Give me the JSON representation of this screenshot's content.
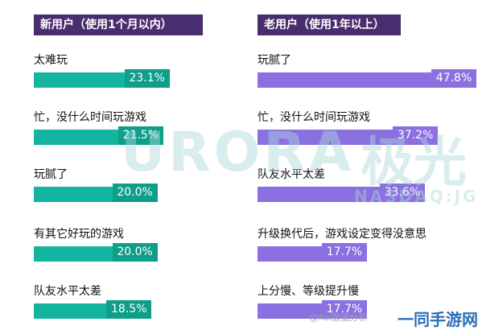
{
  "chart_data": [
    {
      "type": "bar",
      "orientation": "horizontal",
      "title": "新用户（使用1个月以内）",
      "categories": [
        "太难玩",
        "忙，没什么时间玩游戏",
        "玩腻了",
        "有其它好玩的游戏",
        "队友水平太差"
      ],
      "values": [
        23.1,
        21.5,
        20.0,
        20.0,
        18.5
      ],
      "value_labels": [
        "23.1%",
        "21.5%",
        "20.0%",
        "20.0%",
        "18.5%"
      ],
      "color": "#13b5a0",
      "value_box_color": "#0e9e8a",
      "xlim": [
        0,
        50
      ]
    },
    {
      "type": "bar",
      "orientation": "horizontal",
      "title": "老用户（使用1年以上）",
      "categories": [
        "玩腻了",
        "忙，没什么时间玩游戏",
        "队友水平太差",
        "升级换代后，游戏设定变得没意思",
        "上分慢、等级提升慢"
      ],
      "values": [
        47.8,
        37.2,
        33.6,
        17.7,
        17.7
      ],
      "value_labels": [
        "47.8%",
        "37.2%",
        "33.6%",
        "17.7%",
        "17.7%"
      ],
      "color": "#8a70e0",
      "value_box_color": "#8a70e0",
      "xlim": [
        0,
        50
      ]
    }
  ],
  "watermark": {
    "brand": "URORA",
    "brand_cn": "极光",
    "sub": "NASDAQ:JG"
  },
  "corner_logo": "一同手游网",
  "credit": "@Kol数据分析"
}
